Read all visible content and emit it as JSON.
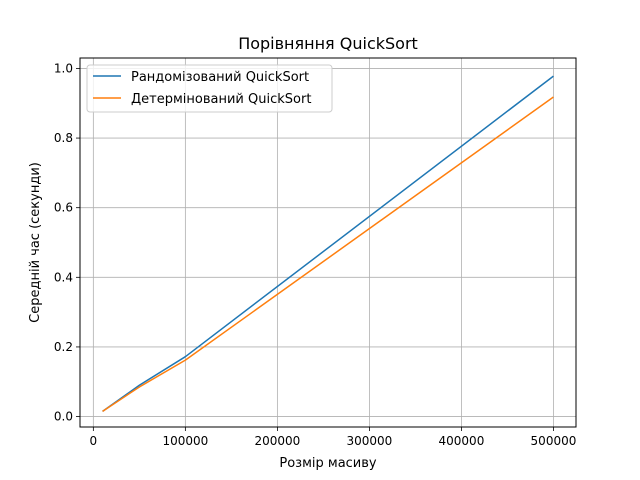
{
  "chart_data": {
    "type": "line",
    "title": "Порівняння QuickSort",
    "xlabel": "Розмір масиву",
    "ylabel": "Середній час (секунди)",
    "xlim": [
      -14500,
      524500
    ],
    "ylim": [
      -0.03,
      1.03
    ],
    "xticks": [
      0,
      100000,
      200000,
      300000,
      400000,
      500000
    ],
    "xtick_labels": [
      "0",
      "100000",
      "200000",
      "300000",
      "400000",
      "500000"
    ],
    "yticks": [
      0.0,
      0.2,
      0.4,
      0.6,
      0.8,
      1.0
    ],
    "ytick_labels": [
      "0.0",
      "0.2",
      "0.4",
      "0.6",
      "0.8",
      "1.0"
    ],
    "grid": true,
    "legend_position": "top-left",
    "x": [
      10000,
      50000,
      100000,
      500000
    ],
    "series": [
      {
        "name": "Рандомізований QuickSort",
        "color": "#1f77b4",
        "values": [
          0.015,
          0.09,
          0.172,
          0.978
        ]
      },
      {
        "name": "Детермінований QuickSort",
        "color": "#ff7f0e",
        "values": [
          0.015,
          0.085,
          0.162,
          0.918
        ]
      }
    ]
  }
}
